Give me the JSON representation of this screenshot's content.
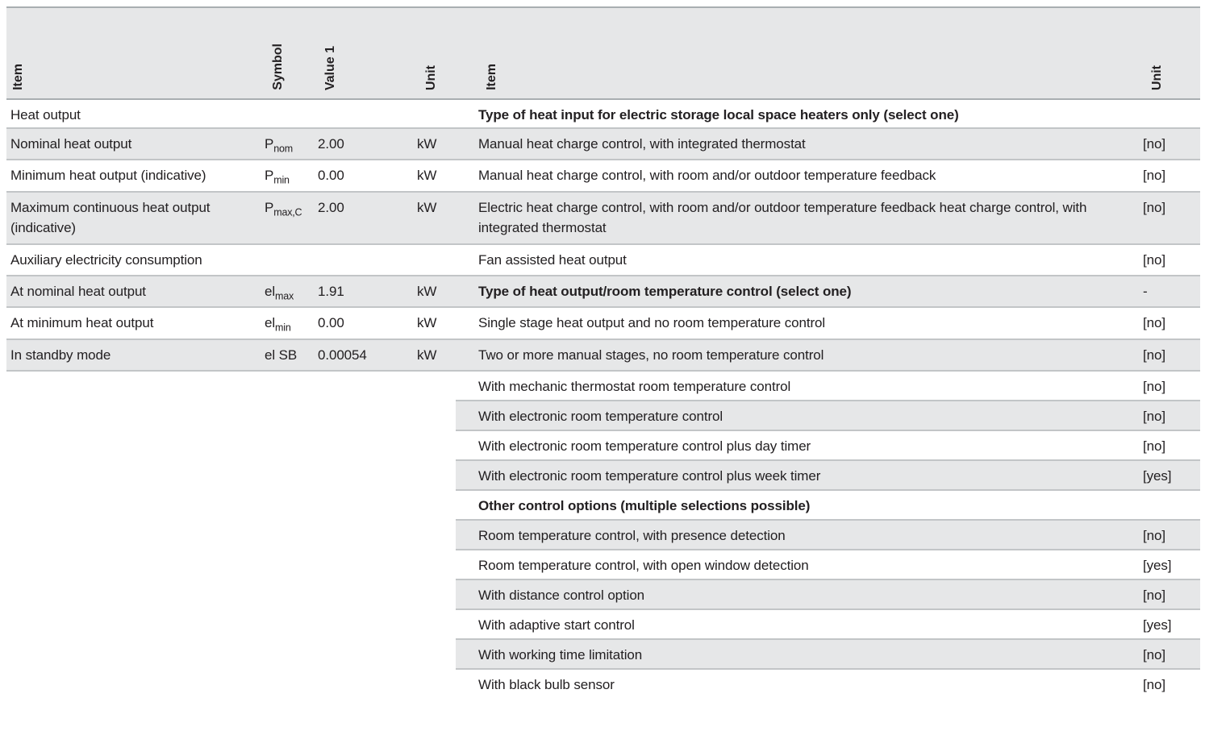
{
  "document_type": "Product information table - local space heater",
  "colors": {
    "stripe": "#e6e7e8",
    "row_line": "#c2c5c7",
    "header_line": "#a9aeb1",
    "text": "#232022"
  },
  "header": {
    "item_left": "Item",
    "symbol": "Symbol",
    "value1": "Value 1",
    "unit_left": "Unit",
    "item_right": "Item",
    "unit_right": "Unit"
  },
  "rows": [
    {
      "left": {
        "item": "Heat output"
      },
      "right": {
        "item": "Type of heat input for electric storage local space heaters only (select one)",
        "unit": ""
      }
    },
    {
      "left": {
        "item": "Nominal heat output",
        "symbol_base": "P",
        "symbol_sub": "nom",
        "value": "2.00",
        "unit": "kW"
      },
      "right": {
        "item": "Manual heat charge control, with integrated thermostat",
        "unit": "[no]"
      }
    },
    {
      "left": {
        "item": "Minimum heat output (indicative)",
        "symbol_base": "P",
        "symbol_sub": "min",
        "value": "0.00",
        "unit": "kW"
      },
      "right": {
        "item": "Manual heat charge control, with room and/or outdoor temperature feedback",
        "unit": "[no]"
      }
    },
    {
      "left": {
        "item": "Maximum continuous heat output (indicative)",
        "symbol_base": "P",
        "symbol_sub": "max,C",
        "value": "2.00",
        "unit": "kW"
      },
      "right": {
        "item": "Electric heat charge control, with room and/or outdoor temperature feedback heat charge control, with integrated thermostat",
        "unit": "[no]"
      }
    },
    {
      "left": {
        "item": "Auxiliary electricity consumption"
      },
      "right": {
        "item": "Fan assisted heat output",
        "unit": "[no]"
      }
    },
    {
      "left": {
        "item": "At nominal heat output",
        "symbol_base": "el",
        "symbol_sub": "max",
        "value": "1.91",
        "unit": "kW"
      },
      "right": {
        "item": "Type of heat output/room temperature control (select one)",
        "unit": "-"
      }
    },
    {
      "left": {
        "item": "At minimum heat output",
        "symbol_base": "el",
        "symbol_sub": "min",
        "value": "0.00",
        "unit": "kW"
      },
      "right": {
        "item": "Single stage heat output and no room temperature control",
        "unit": "[no]"
      }
    },
    {
      "left": {
        "item": "In standby mode",
        "symbol_base": "el SB",
        "value": "0.00054",
        "unit": "kW"
      },
      "right": {
        "item": "Two or more manual stages, no room temperature control",
        "unit": "[no]"
      }
    },
    {
      "right": {
        "item": "With mechanic thermostat room temperature control",
        "unit": "[no]"
      }
    },
    {
      "right": {
        "item": "With electronic room temperature control",
        "unit": "[no]"
      }
    },
    {
      "right": {
        "item": "With electronic room temperature control plus day timer",
        "unit": "[no]"
      }
    },
    {
      "right": {
        "item": "With electronic room temperature control plus week timer",
        "unit": "[yes]"
      }
    },
    {
      "right": {
        "item": "Other control options (multiple selections possible)",
        "unit": ""
      }
    },
    {
      "right": {
        "item": "Room temperature control, with presence detection",
        "unit": "[no]"
      }
    },
    {
      "right": {
        "item": "Room temperature control, with open window detection",
        "unit": "[yes]"
      }
    },
    {
      "right": {
        "item": "With distance control option",
        "unit": "[no]"
      }
    },
    {
      "right": {
        "item": "With adaptive start control",
        "unit": "[yes]"
      }
    },
    {
      "right": {
        "item": "With working time limitation",
        "unit": "[no]"
      }
    },
    {
      "right": {
        "item": "With black bulb sensor",
        "unit": "[no]"
      }
    }
  ]
}
